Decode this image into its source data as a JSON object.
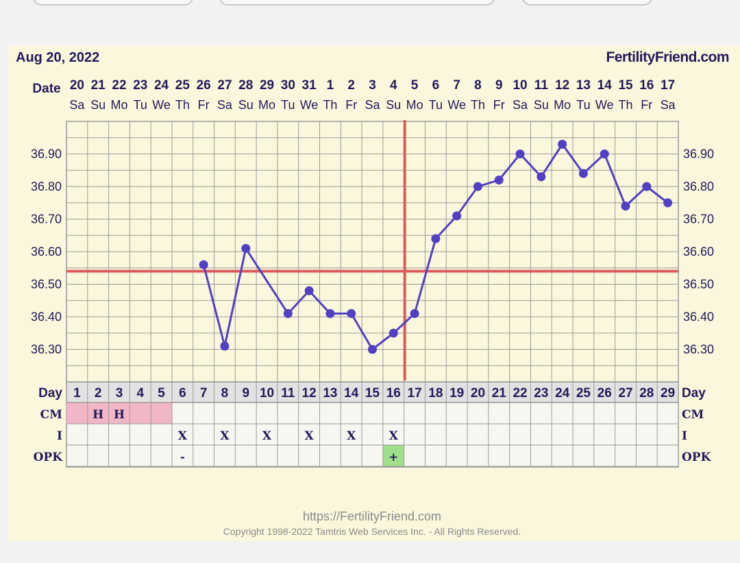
{
  "header": {
    "date": "Aug 20, 2022",
    "brand": "FertilityFriend.com"
  },
  "footer": {
    "url": "https://FertilityFriend.com",
    "copyright": "Copyright 1998-2022 Tamtris Web Services Inc. - All Rights Reserved."
  },
  "row_labels": {
    "date": "Date",
    "day": "Day",
    "cm": "CM",
    "intercourse": "I",
    "opk": "OPK"
  },
  "colors": {
    "temp_line": "#5140c4",
    "coverline": "#dc5a5a",
    "ovulation_line": "#dc5a5a",
    "cm_fill": "#f2b7c6",
    "opk_positive": "#9fe08a",
    "grid": "#9a9a9a",
    "text": "#23195a"
  },
  "chart_data": {
    "type": "line",
    "title": "",
    "xlabel": "Day",
    "ylabel": "",
    "ylim": [
      36.2,
      37.0
    ],
    "y_ticks": [
      "36.30",
      "36.40",
      "36.50",
      "36.60",
      "36.70",
      "36.80",
      "36.90"
    ],
    "coverline": 36.54,
    "ovulation_day": 17,
    "grid": true,
    "days": [
      {
        "day": 1,
        "date": "20",
        "dow": "Sa",
        "temp": null,
        "cm": "",
        "intercourse": "",
        "opk": ""
      },
      {
        "day": 2,
        "date": "21",
        "dow": "Su",
        "temp": null,
        "cm": "H",
        "intercourse": "",
        "opk": ""
      },
      {
        "day": 3,
        "date": "22",
        "dow": "Mo",
        "temp": null,
        "cm": "H",
        "intercourse": "",
        "opk": ""
      },
      {
        "day": 4,
        "date": "23",
        "dow": "Tu",
        "temp": null,
        "cm": "",
        "intercourse": "",
        "opk": ""
      },
      {
        "day": 5,
        "date": "24",
        "dow": "We",
        "temp": null,
        "cm": "",
        "intercourse": "",
        "opk": ""
      },
      {
        "day": 6,
        "date": "25",
        "dow": "Th",
        "temp": null,
        "cm": "",
        "intercourse": "X",
        "opk": "-"
      },
      {
        "day": 7,
        "date": "26",
        "dow": "Fr",
        "temp": 36.56,
        "cm": "",
        "intercourse": "",
        "opk": ""
      },
      {
        "day": 8,
        "date": "27",
        "dow": "Sa",
        "temp": 36.31,
        "cm": "",
        "intercourse": "X",
        "opk": ""
      },
      {
        "day": 9,
        "date": "28",
        "dow": "Su",
        "temp": 36.61,
        "cm": "",
        "intercourse": "",
        "opk": ""
      },
      {
        "day": 10,
        "date": "29",
        "dow": "Mo",
        "temp": null,
        "cm": "",
        "intercourse": "X",
        "opk": ""
      },
      {
        "day": 11,
        "date": "30",
        "dow": "Tu",
        "temp": 36.41,
        "cm": "",
        "intercourse": "",
        "opk": ""
      },
      {
        "day": 12,
        "date": "31",
        "dow": "We",
        "temp": 36.48,
        "cm": "",
        "intercourse": "X",
        "opk": ""
      },
      {
        "day": 13,
        "date": "1",
        "dow": "Th",
        "temp": 36.41,
        "cm": "",
        "intercourse": "",
        "opk": ""
      },
      {
        "day": 14,
        "date": "2",
        "dow": "Fr",
        "temp": 36.41,
        "cm": "",
        "intercourse": "X",
        "opk": ""
      },
      {
        "day": 15,
        "date": "3",
        "dow": "Sa",
        "temp": 36.3,
        "cm": "",
        "intercourse": "",
        "opk": ""
      },
      {
        "day": 16,
        "date": "4",
        "dow": "Su",
        "temp": 36.35,
        "cm": "",
        "intercourse": "X",
        "opk": "+"
      },
      {
        "day": 17,
        "date": "5",
        "dow": "Mo",
        "temp": 36.41,
        "cm": "",
        "intercourse": "",
        "opk": ""
      },
      {
        "day": 18,
        "date": "6",
        "dow": "Tu",
        "temp": 36.64,
        "cm": "",
        "intercourse": "",
        "opk": ""
      },
      {
        "day": 19,
        "date": "7",
        "dow": "We",
        "temp": 36.71,
        "cm": "",
        "intercourse": "",
        "opk": ""
      },
      {
        "day": 20,
        "date": "8",
        "dow": "Th",
        "temp": 36.8,
        "cm": "",
        "intercourse": "",
        "opk": ""
      },
      {
        "day": 21,
        "date": "9",
        "dow": "Fr",
        "temp": 36.82,
        "cm": "",
        "intercourse": "",
        "opk": ""
      },
      {
        "day": 22,
        "date": "10",
        "dow": "Sa",
        "temp": 36.9,
        "cm": "",
        "intercourse": "",
        "opk": ""
      },
      {
        "day": 23,
        "date": "11",
        "dow": "Su",
        "temp": 36.83,
        "cm": "",
        "intercourse": "",
        "opk": ""
      },
      {
        "day": 24,
        "date": "12",
        "dow": "Mo",
        "temp": 36.93,
        "cm": "",
        "intercourse": "",
        "opk": ""
      },
      {
        "day": 25,
        "date": "13",
        "dow": "Tu",
        "temp": 36.84,
        "cm": "",
        "intercourse": "",
        "opk": ""
      },
      {
        "day": 26,
        "date": "14",
        "dow": "We",
        "temp": 36.9,
        "cm": "",
        "intercourse": "",
        "opk": ""
      },
      {
        "day": 27,
        "date": "15",
        "dow": "Th",
        "temp": 36.74,
        "cm": "",
        "intercourse": "",
        "opk": ""
      },
      {
        "day": 28,
        "date": "16",
        "dow": "Fr",
        "temp": 36.8,
        "cm": "",
        "intercourse": "",
        "opk": ""
      },
      {
        "day": 29,
        "date": "17",
        "dow": "Sa",
        "temp": 36.75,
        "cm": "",
        "intercourse": "",
        "opk": ""
      }
    ],
    "cm_colored_days": [
      1,
      2,
      3,
      4,
      5
    ],
    "opk_positive_days": [
      16
    ]
  }
}
